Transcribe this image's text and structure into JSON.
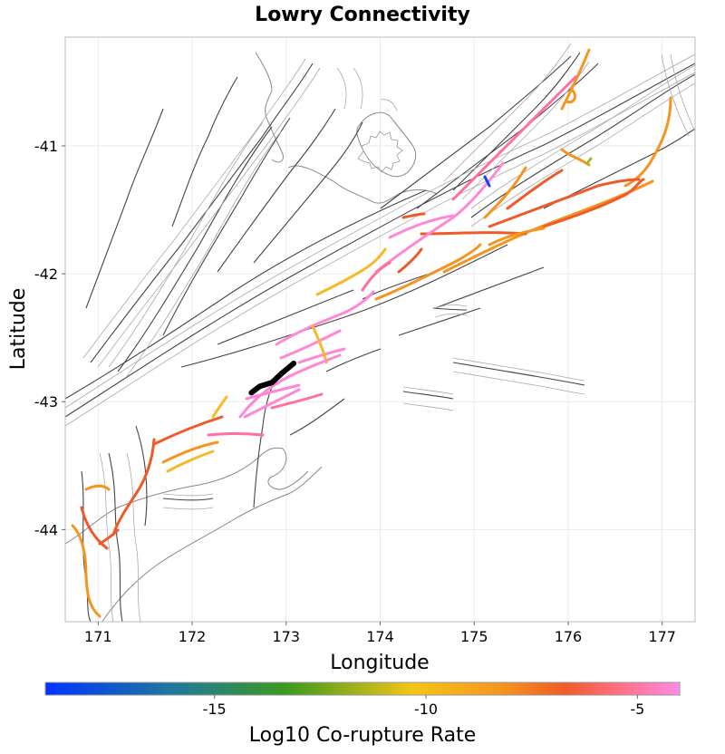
{
  "title": "Lowry Connectivity",
  "xlabel": "Longitude",
  "ylabel": "Latitude",
  "colorbar": {
    "label": "Log10 Co-rupture Rate",
    "stops": [
      "#0033ff",
      "#1f7a9e",
      "#3c9a1e",
      "#f5c518",
      "#f07820",
      "#f05a28",
      "#ff8ae8"
    ],
    "ticks": [
      {
        "value": -15,
        "label": "-15"
      },
      {
        "value": -10,
        "label": "-10"
      },
      {
        "value": -5,
        "label": "-5"
      }
    ],
    "range": [
      -19,
      -4
    ]
  },
  "x_ticks": [
    {
      "value": 171,
      "label": "171"
    },
    {
      "value": 172,
      "label": "172"
    },
    {
      "value": 173,
      "label": "173"
    },
    {
      "value": 174,
      "label": "174"
    },
    {
      "value": 175,
      "label": "175"
    },
    {
      "value": 176,
      "label": "176"
    },
    {
      "value": 177,
      "label": "177"
    }
  ],
  "y_ticks": [
    {
      "value": -41,
      "label": "-41"
    },
    {
      "value": -42,
      "label": "-42"
    },
    {
      "value": -43,
      "label": "-43"
    },
    {
      "value": -44,
      "label": "-44"
    }
  ],
  "extent": {
    "lon": [
      170.65,
      177.35
    ],
    "lat": [
      -44.72,
      -40.15
    ]
  },
  "source_fault": {
    "name": "Lowry",
    "color": "#000000",
    "points": [
      [
        172.63,
        -42.93
      ],
      [
        172.72,
        -42.88
      ],
      [
        172.85,
        -42.85
      ],
      [
        172.95,
        -42.78
      ],
      [
        173.08,
        -42.7
      ]
    ]
  },
  "colors": {
    "pink": "#ff88d4",
    "hotpink": "#ff6fa0",
    "red": "#f05a28",
    "orange": "#f5941f",
    "gold": "#f7b928",
    "yellow": "#f2c81d",
    "blue": "#1144ee",
    "green": "#99bb22"
  }
}
